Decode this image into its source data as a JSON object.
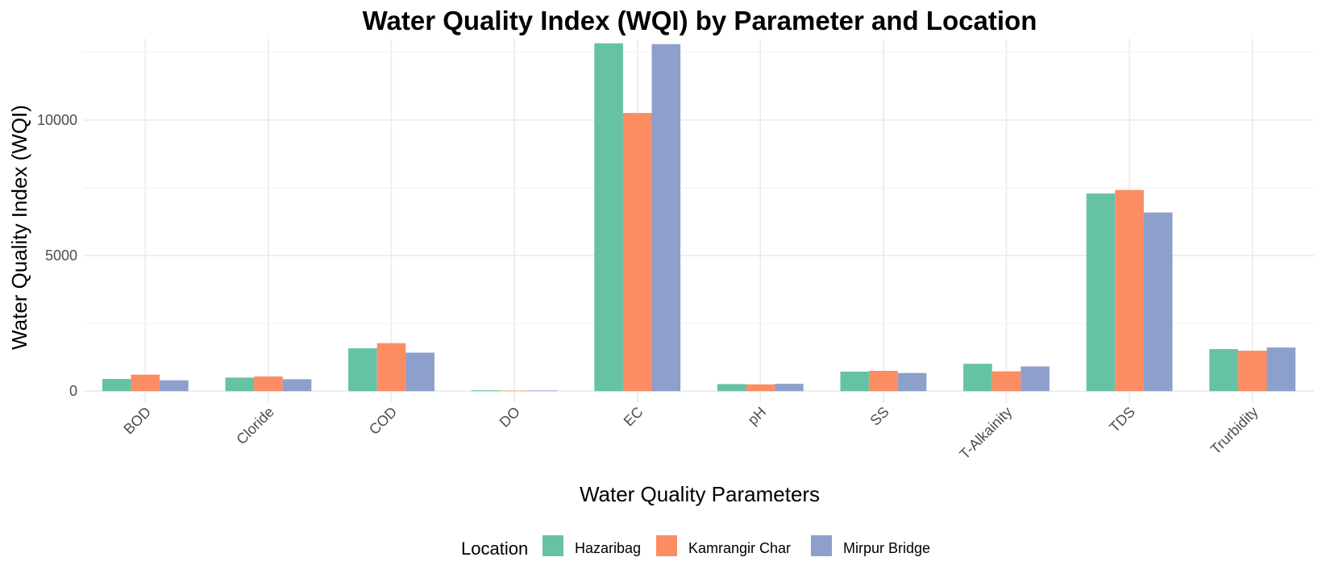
{
  "chart_data": {
    "type": "bar",
    "title": "Water Quality Index (WQI) by Parameter and Location",
    "xlabel": "Water Quality Parameters",
    "ylabel": "Water Quality Index (WQI)",
    "categories": [
      "BOD",
      "Cloride",
      "COD",
      "DO",
      "EC",
      "pH",
      "SS",
      "T-Alkainity",
      "TDS",
      "Trurbidity"
    ],
    "series": [
      {
        "name": "Hazaribag",
        "color": "#66c2a5",
        "values": [
          450,
          500,
          1580,
          30,
          12830,
          260,
          720,
          1010,
          7290,
          1550
        ]
      },
      {
        "name": "Kamrangir Char",
        "color": "#fc8d62",
        "values": [
          610,
          540,
          1770,
          20,
          10260,
          250,
          750,
          730,
          7420,
          1490
        ]
      },
      {
        "name": "Mirpur Bridge",
        "color": "#8da0cb",
        "values": [
          400,
          440,
          1420,
          25,
          12800,
          270,
          670,
          910,
          6590,
          1610
        ]
      }
    ],
    "ylim": [
      -440,
      13000
    ],
    "yticks": [
      0,
      5000,
      10000
    ],
    "grid": true,
    "legend": {
      "title": "Location",
      "position": "bottom"
    }
  }
}
